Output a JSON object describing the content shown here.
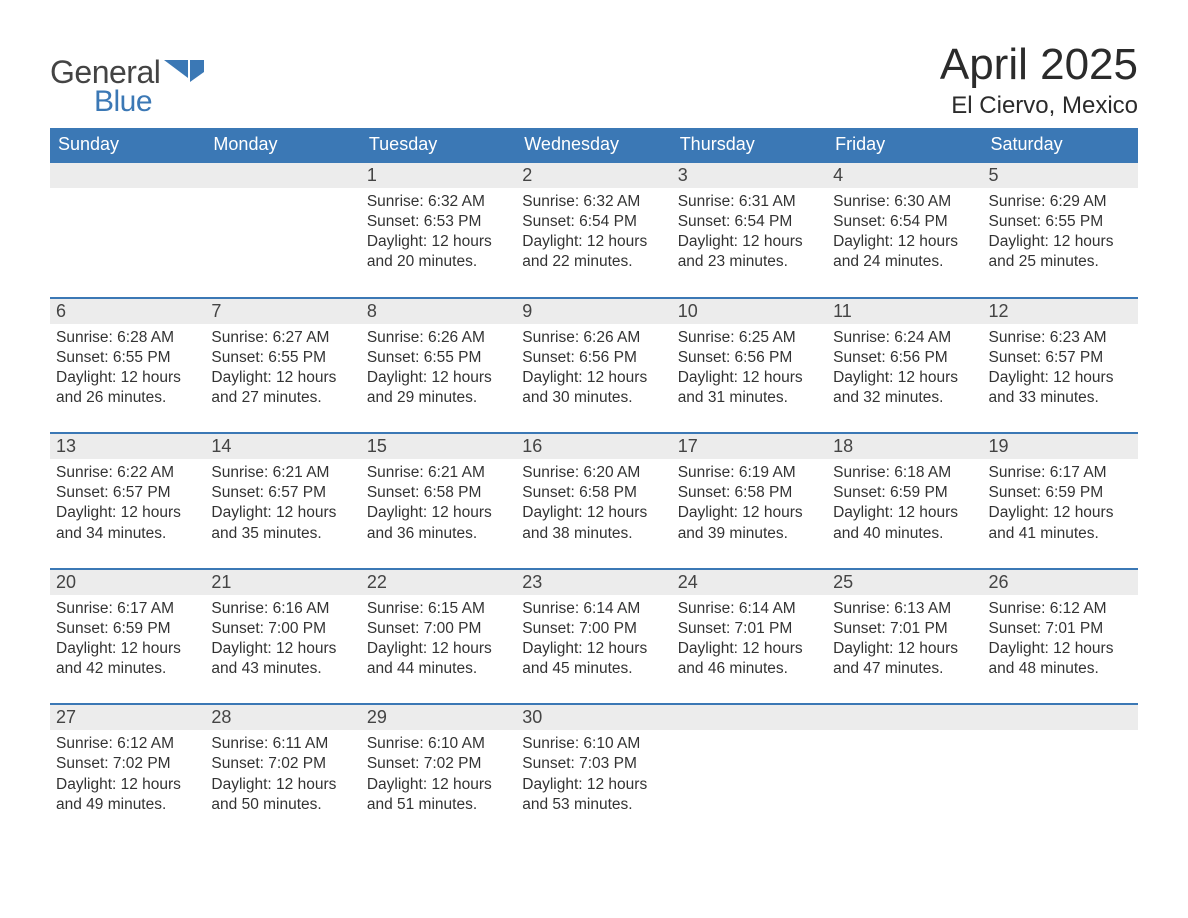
{
  "brand": {
    "part1": "General",
    "part2": "Blue",
    "text_color": "#444444",
    "accent_color": "#3b78b5"
  },
  "title": "April 2025",
  "location": "El Ciervo, Mexico",
  "theme": {
    "header_bg": "#3b78b5",
    "header_text": "#ffffff",
    "daynum_bg": "#ececec",
    "row_border": "#3b78b5",
    "page_bg": "#ffffff",
    "body_text": "#333333",
    "title_fontsize": 44,
    "location_fontsize": 24,
    "dayheader_fontsize": 18,
    "cell_fontsize": 15.5
  },
  "day_headers": [
    "Sunday",
    "Monday",
    "Tuesday",
    "Wednesday",
    "Thursday",
    "Friday",
    "Saturday"
  ],
  "weeks": [
    [
      null,
      null,
      {
        "n": "1",
        "sr": "6:32 AM",
        "ss": "6:53 PM",
        "dl": "12 hours and 20 minutes."
      },
      {
        "n": "2",
        "sr": "6:32 AM",
        "ss": "6:54 PM",
        "dl": "12 hours and 22 minutes."
      },
      {
        "n": "3",
        "sr": "6:31 AM",
        "ss": "6:54 PM",
        "dl": "12 hours and 23 minutes."
      },
      {
        "n": "4",
        "sr": "6:30 AM",
        "ss": "6:54 PM",
        "dl": "12 hours and 24 minutes."
      },
      {
        "n": "5",
        "sr": "6:29 AM",
        "ss": "6:55 PM",
        "dl": "12 hours and 25 minutes."
      }
    ],
    [
      {
        "n": "6",
        "sr": "6:28 AM",
        "ss": "6:55 PM",
        "dl": "12 hours and 26 minutes."
      },
      {
        "n": "7",
        "sr": "6:27 AM",
        "ss": "6:55 PM",
        "dl": "12 hours and 27 minutes."
      },
      {
        "n": "8",
        "sr": "6:26 AM",
        "ss": "6:55 PM",
        "dl": "12 hours and 29 minutes."
      },
      {
        "n": "9",
        "sr": "6:26 AM",
        "ss": "6:56 PM",
        "dl": "12 hours and 30 minutes."
      },
      {
        "n": "10",
        "sr": "6:25 AM",
        "ss": "6:56 PM",
        "dl": "12 hours and 31 minutes."
      },
      {
        "n": "11",
        "sr": "6:24 AM",
        "ss": "6:56 PM",
        "dl": "12 hours and 32 minutes."
      },
      {
        "n": "12",
        "sr": "6:23 AM",
        "ss": "6:57 PM",
        "dl": "12 hours and 33 minutes."
      }
    ],
    [
      {
        "n": "13",
        "sr": "6:22 AM",
        "ss": "6:57 PM",
        "dl": "12 hours and 34 minutes."
      },
      {
        "n": "14",
        "sr": "6:21 AM",
        "ss": "6:57 PM",
        "dl": "12 hours and 35 minutes."
      },
      {
        "n": "15",
        "sr": "6:21 AM",
        "ss": "6:58 PM",
        "dl": "12 hours and 36 minutes."
      },
      {
        "n": "16",
        "sr": "6:20 AM",
        "ss": "6:58 PM",
        "dl": "12 hours and 38 minutes."
      },
      {
        "n": "17",
        "sr": "6:19 AM",
        "ss": "6:58 PM",
        "dl": "12 hours and 39 minutes."
      },
      {
        "n": "18",
        "sr": "6:18 AM",
        "ss": "6:59 PM",
        "dl": "12 hours and 40 minutes."
      },
      {
        "n": "19",
        "sr": "6:17 AM",
        "ss": "6:59 PM",
        "dl": "12 hours and 41 minutes."
      }
    ],
    [
      {
        "n": "20",
        "sr": "6:17 AM",
        "ss": "6:59 PM",
        "dl": "12 hours and 42 minutes."
      },
      {
        "n": "21",
        "sr": "6:16 AM",
        "ss": "7:00 PM",
        "dl": "12 hours and 43 minutes."
      },
      {
        "n": "22",
        "sr": "6:15 AM",
        "ss": "7:00 PM",
        "dl": "12 hours and 44 minutes."
      },
      {
        "n": "23",
        "sr": "6:14 AM",
        "ss": "7:00 PM",
        "dl": "12 hours and 45 minutes."
      },
      {
        "n": "24",
        "sr": "6:14 AM",
        "ss": "7:01 PM",
        "dl": "12 hours and 46 minutes."
      },
      {
        "n": "25",
        "sr": "6:13 AM",
        "ss": "7:01 PM",
        "dl": "12 hours and 47 minutes."
      },
      {
        "n": "26",
        "sr": "6:12 AM",
        "ss": "7:01 PM",
        "dl": "12 hours and 48 minutes."
      }
    ],
    [
      {
        "n": "27",
        "sr": "6:12 AM",
        "ss": "7:02 PM",
        "dl": "12 hours and 49 minutes."
      },
      {
        "n": "28",
        "sr": "6:11 AM",
        "ss": "7:02 PM",
        "dl": "12 hours and 50 minutes."
      },
      {
        "n": "29",
        "sr": "6:10 AM",
        "ss": "7:02 PM",
        "dl": "12 hours and 51 minutes."
      },
      {
        "n": "30",
        "sr": "6:10 AM",
        "ss": "7:03 PM",
        "dl": "12 hours and 53 minutes."
      },
      null,
      null,
      null
    ]
  ],
  "labels": {
    "sunrise": "Sunrise: ",
    "sunset": "Sunset: ",
    "daylight": "Daylight: "
  }
}
